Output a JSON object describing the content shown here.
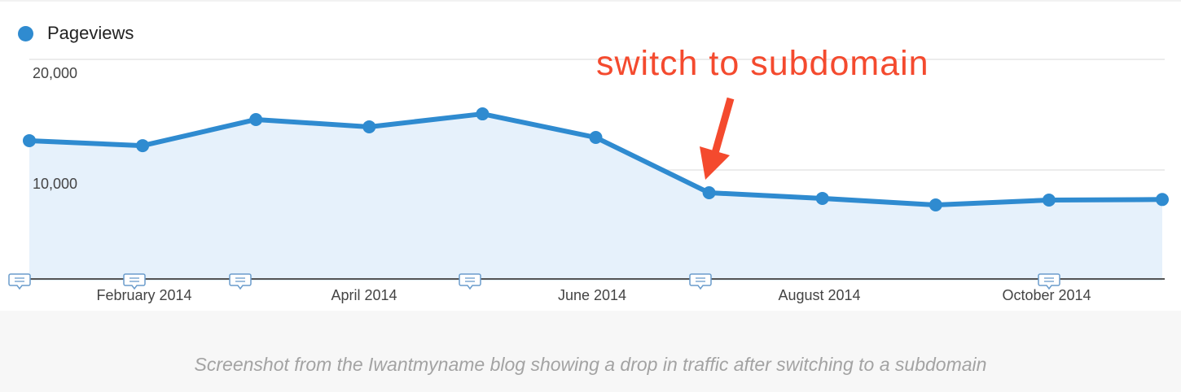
{
  "legend": {
    "label": "Pageviews",
    "color": "#2f8bd0"
  },
  "annotation": {
    "text": "switch to subdomain",
    "color": "#f44a2e"
  },
  "caption": "Screenshot from the Iwantmyname blog showing a drop in traffic after switching to a subdomain",
  "y_ticks": [
    {
      "label": "20,000",
      "value": 20000
    },
    {
      "label": "10,000",
      "value": 10000
    }
  ],
  "x_ticks": [
    {
      "label": "February 2014"
    },
    {
      "label": "April 2014"
    },
    {
      "label": "June 2014"
    },
    {
      "label": "August 2014"
    },
    {
      "label": "October 2014"
    }
  ],
  "colors": {
    "line": "#2f8bd0",
    "fill": "#e6f1fb",
    "grid": "#e6e6e6",
    "axis": "#555555",
    "arrow": "#f44a2e"
  },
  "chart_data": {
    "type": "area",
    "title": "",
    "xlabel": "",
    "ylabel": "",
    "categories": [
      "Jan 2014",
      "Feb 2014",
      "Mar 2014",
      "Apr 2014",
      "May 2014",
      "Jun 2014",
      "Jul 2014",
      "Aug 2014",
      "Sep 2014",
      "Oct 2014",
      "Nov 2014"
    ],
    "series": [
      {
        "name": "Pageviews",
        "values": [
          12650,
          12200,
          14560,
          13900,
          15070,
          12940,
          7940,
          7430,
          6840,
          7280,
          7330
        ]
      }
    ],
    "x_tick_labels": [
      "February 2014",
      "April 2014",
      "June 2014",
      "August 2014",
      "October 2014"
    ],
    "y_tick_labels": [
      "10,000",
      "20,000"
    ],
    "ylim": [
      0,
      20000
    ],
    "grid": true,
    "legend_position": "top-left",
    "annotations": [
      {
        "text": "switch to subdomain",
        "target_category": "Jul 2014",
        "type": "arrow"
      }
    ],
    "event_markers_x": [
      "Jan 2014",
      "Feb 2014",
      "Mar 2014",
      "May 2014",
      "Jul 2014",
      "Oct 2014"
    ]
  }
}
